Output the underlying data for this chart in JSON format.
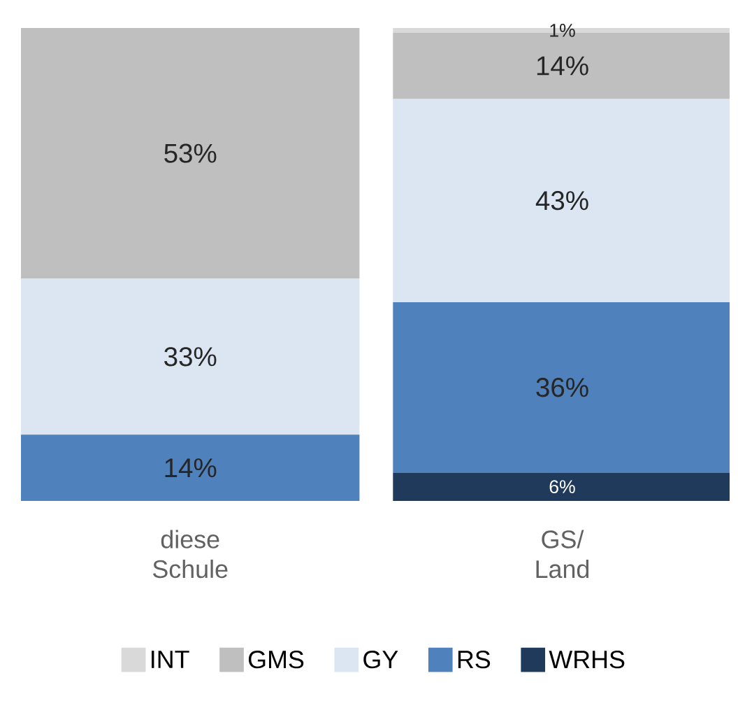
{
  "chart_data": {
    "type": "bar",
    "stacked": true,
    "legend": "bottom",
    "categories": [
      "diese Schule",
      "GS/ Land"
    ],
    "series": [
      {
        "name": "WRHS",
        "color": "#203a5c",
        "values": [
          0,
          6
        ],
        "value_labels": [
          null,
          "6%"
        ]
      },
      {
        "name": "RS",
        "color": "#4f81bd",
        "values": [
          14,
          36
        ],
        "value_labels": [
          "14%",
          "36%"
        ]
      },
      {
        "name": "GY",
        "color": "#dce6f2",
        "values": [
          33,
          43
        ],
        "value_labels": [
          "33%",
          "43%"
        ]
      },
      {
        "name": "GMS",
        "color": "#bfbfbf",
        "values": [
          53,
          14
        ],
        "value_labels": [
          "53%",
          "14%"
        ]
      },
      {
        "name": "INT",
        "color": "#d9d9d9",
        "values": [
          0,
          1
        ],
        "value_labels": [
          null,
          "1%"
        ]
      }
    ]
  }
}
